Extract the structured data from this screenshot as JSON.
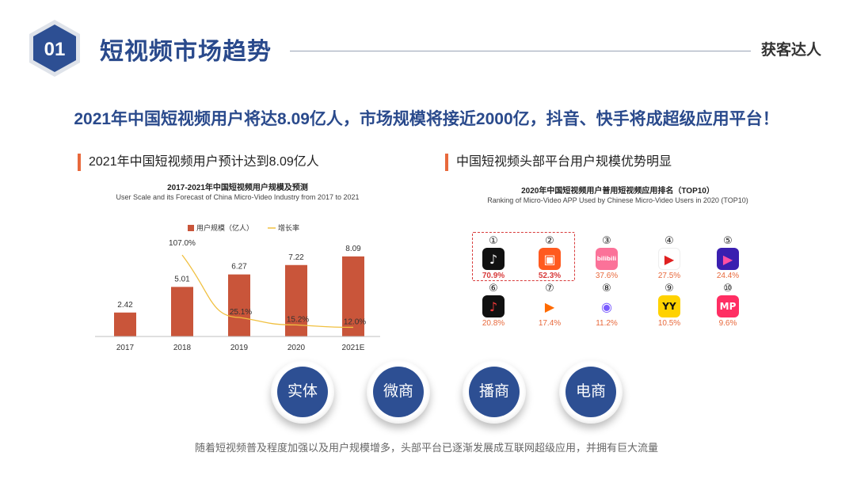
{
  "header": {
    "badge_number": "01",
    "title": "短视频市场趋势",
    "brand": "获客达人"
  },
  "headline": "2021年中国短视频用户将达8.09亿人，市场规模将接近2000亿，抖音、快手将成超级应用平台！",
  "left_section": {
    "title": "2021年中国短视频用户预计达到8.09亿人"
  },
  "right_section": {
    "title": "中国短视频头部平台用户规模优势明显",
    "chart_title": "2020年中国短视频用户普用短视频应用排名（TOP10）",
    "chart_subtitle": "Ranking of Micro-Video APP Used by Chinese Micro-Video Users in 2020 (TOP10)"
  },
  "chart_data": [
    {
      "type": "bar",
      "title": "2017-2021年中国短视频用户规模及预测",
      "subtitle": "User Scale and its Forecast of China Micro-Video Industry from 2017 to 2021",
      "categories": [
        "2017",
        "2018",
        "2019",
        "2020",
        "2021E"
      ],
      "series": [
        {
          "name": "用户规模（亿人）",
          "type": "bar",
          "values": [
            2.42,
            5.01,
            6.27,
            7.22,
            8.09
          ],
          "labels": [
            "2.42",
            "5.01",
            "6.27",
            "7.22",
            "8.09"
          ],
          "color": "#c9553a"
        },
        {
          "name": "增长率",
          "type": "line",
          "values": [
            null,
            107.0,
            25.1,
            15.2,
            12.0
          ],
          "labels": [
            "",
            "107.0%",
            "25.1%",
            "15.2%",
            "12.0%"
          ],
          "color": "#f0c040"
        }
      ],
      "ylim_bar": [
        0,
        10
      ],
      "ylim_line": [
        0,
        130
      ],
      "legend": "top-center",
      "grid": false
    },
    {
      "type": "table",
      "title": "2020年中国短视频用户普用短视频应用排名（TOP10）",
      "rows": [
        {
          "rank": "①",
          "icon": "douyin-icon",
          "value": "70.9%",
          "highlight": true
        },
        {
          "rank": "②",
          "icon": "kuaishou-icon",
          "value": "52.3%",
          "highlight": true
        },
        {
          "rank": "③",
          "icon": "bilibili-icon",
          "value": "37.6%",
          "highlight": false
        },
        {
          "rank": "④",
          "icon": "xigua-icon",
          "value": "27.5%",
          "highlight": false
        },
        {
          "rank": "⑤",
          "icon": "haokan-icon",
          "value": "24.4%",
          "highlight": false
        },
        {
          "rank": "⑥",
          "icon": "douyin-huoshan-icon",
          "value": "20.8%",
          "highlight": false
        },
        {
          "rank": "⑦",
          "icon": "weishi-icon",
          "value": "17.4%",
          "highlight": false
        },
        {
          "rank": "⑧",
          "icon": "kuaishou-lite-icon",
          "value": "11.2%",
          "highlight": false
        },
        {
          "rank": "⑨",
          "icon": "yy-icon",
          "value": "10.5%",
          "highlight": false
        },
        {
          "rank": "⑩",
          "icon": "meipai-icon",
          "value": "9.6%",
          "highlight": false
        }
      ]
    }
  ],
  "channels": [
    "实体",
    "微商",
    "播商",
    "电商"
  ],
  "footer": "随着短视频普及程度加强以及用户规模增多，头部平台已逐渐发展成互联网超级应用，并拥有巨大流量",
  "icon_text": {
    "bilibili": "bilibili",
    "yy": "YY",
    "meipai": "MP"
  },
  "colors": {
    "primary": "#2a4a8c",
    "accent": "#e8693c",
    "bar": "#c9553a",
    "line": "#f0c040",
    "highlight_value": "#d83b3b",
    "other_value": "#e8693c"
  }
}
